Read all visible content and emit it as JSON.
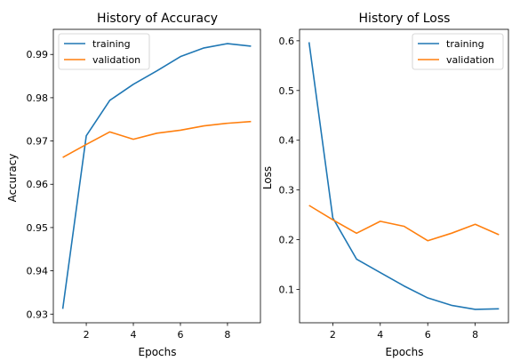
{
  "chart_data": [
    {
      "type": "line",
      "title": "History of Accuracy",
      "xlabel": "Epochs",
      "ylabel": "Accuracy",
      "xlim": [
        0.6,
        9.4
      ],
      "ylim": [
        0.928,
        0.9958
      ],
      "xticks": [
        2,
        4,
        6,
        8
      ],
      "yticks": [
        0.93,
        0.94,
        0.95,
        0.96,
        0.97,
        0.98,
        0.99
      ],
      "grid": false,
      "legend": "top-left",
      "x": [
        1,
        2,
        3,
        4,
        5,
        6,
        7,
        8,
        9
      ],
      "series": [
        {
          "name": "training",
          "color": "#1f77b4",
          "values": [
            0.9312,
            0.9712,
            0.9794,
            0.9831,
            0.9862,
            0.9895,
            0.9915,
            0.9925,
            0.9919
          ]
        },
        {
          "name": "validation",
          "color": "#ff7f0e",
          "values": [
            0.9662,
            0.9692,
            0.9721,
            0.9704,
            0.9718,
            0.9725,
            0.9735,
            0.9741,
            0.9745
          ]
        }
      ]
    },
    {
      "type": "line",
      "title": "History of Loss",
      "xlabel": "Epochs",
      "ylabel": "Loss",
      "xlim": [
        0.6,
        9.4
      ],
      "ylim": [
        0.033,
        0.623
      ],
      "xticks": [
        2,
        4,
        6,
        8
      ],
      "yticks": [
        0.1,
        0.2,
        0.3,
        0.4,
        0.5,
        0.6
      ],
      "grid": false,
      "legend": "top-right",
      "x": [
        1,
        2,
        3,
        4,
        5,
        6,
        7,
        8,
        9
      ],
      "series": [
        {
          "name": "training",
          "color": "#1f77b4",
          "values": [
            0.597,
            0.244,
            0.161,
            0.134,
            0.107,
            0.083,
            0.068,
            0.06,
            0.061
          ]
        },
        {
          "name": "validation",
          "color": "#ff7f0e",
          "values": [
            0.269,
            0.24,
            0.213,
            0.237,
            0.227,
            0.198,
            0.213,
            0.231,
            0.21
          ]
        }
      ]
    }
  ]
}
